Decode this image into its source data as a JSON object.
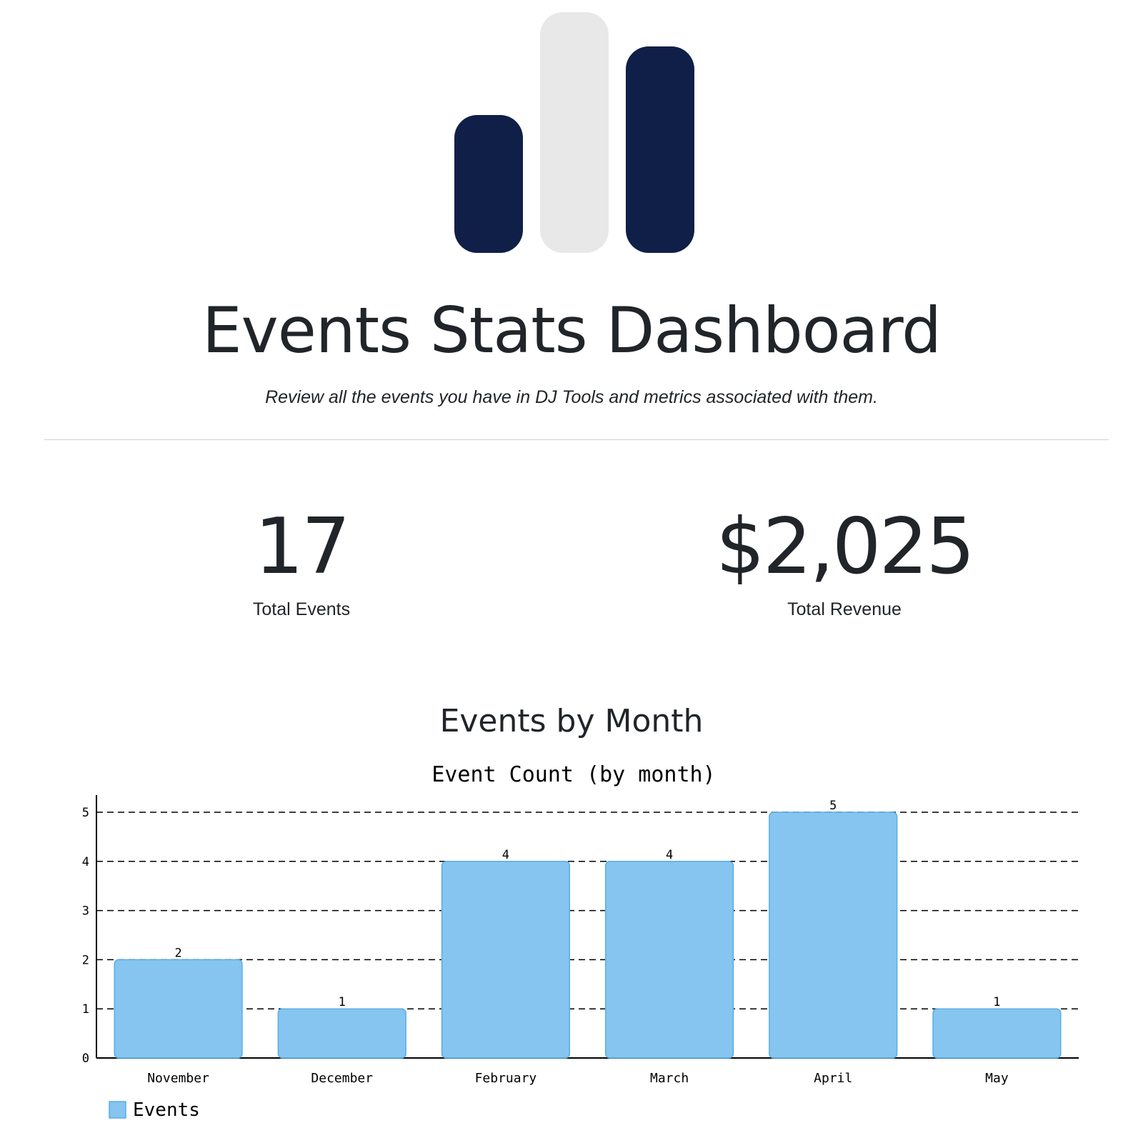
{
  "logo": {
    "colors": [
      "#0f1f47",
      "#e8e8e8",
      "#0f1f47"
    ]
  },
  "header": {
    "title": "Events Stats Dashboard",
    "subtitle": "Review all the events you have in DJ Tools and metrics associated with them."
  },
  "stats": [
    {
      "value": "17",
      "label": "Total Events"
    },
    {
      "value": "$2,025",
      "label": "Total Revenue"
    }
  ],
  "section": {
    "title": "Events by Month"
  },
  "chart_data": {
    "type": "bar",
    "title": "Event Count (by month)",
    "categories": [
      "November",
      "December",
      "February",
      "March",
      "April",
      "May"
    ],
    "series": [
      {
        "name": "Events",
        "values": [
          2,
          1,
          4,
          4,
          5,
          1
        ]
      }
    ],
    "ylim": [
      0,
      5
    ],
    "yticks": [
      0,
      1,
      2,
      3,
      4,
      5
    ],
    "grid": true,
    "gridStyle": "dashed",
    "legend": "bottom-left",
    "barColor": "#85c5ef",
    "barBorder": "#5aaee3",
    "data_labels": true
  }
}
